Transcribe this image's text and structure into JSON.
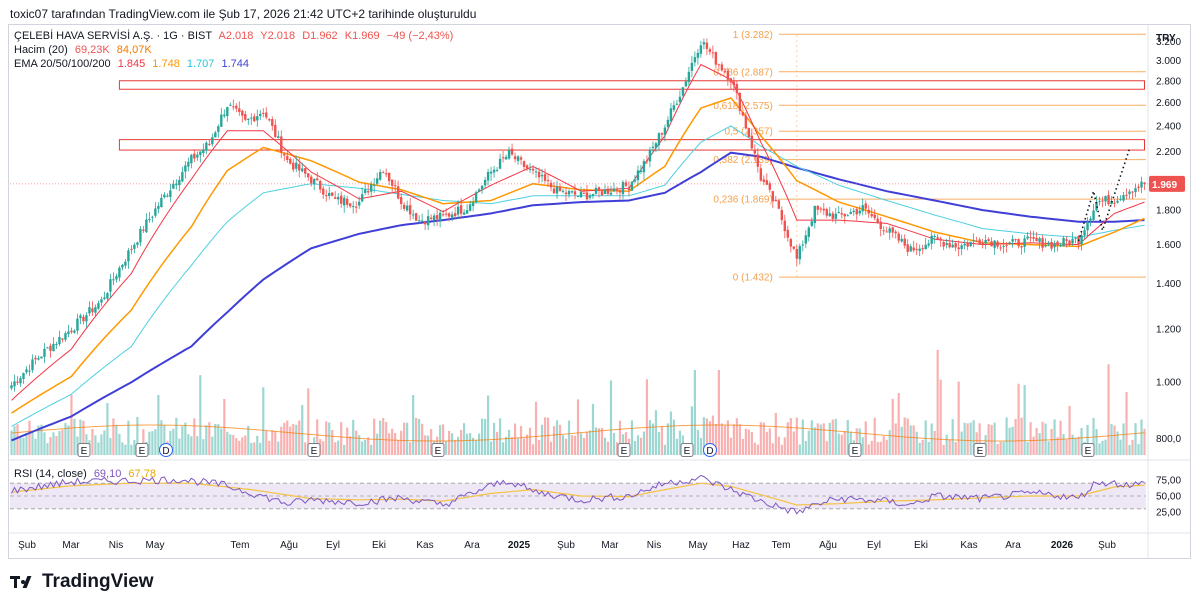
{
  "caption": "toxic07 tarafından TradingView.com ile Şub 17, 2026 21:42 UTC+2 tarihinde oluşturuldu",
  "legend": {
    "symbol": "ÇELEBİ HAVA SERVİSİ A.Ş. · 1G · BIST",
    "open": "A2.018",
    "high": "Y2.018",
    "low": "D1.962",
    "close": "K1.969",
    "change": "−49 (−2,43%)",
    "volume_label": "Hacim (20)",
    "volume_value": "69,23K",
    "volume_ma": "84,07K",
    "ema_label": "EMA 20/50/100/200",
    "ema20": "1.845",
    "ema50": "1.748",
    "ema100": "1.707",
    "ema200": "1.744",
    "rsi_label": "RSI (14, close)",
    "rsi_value": "69,10",
    "rsi_ma": "67,78"
  },
  "currency": "TRY",
  "last_price_label": "1.969",
  "brand": "TradingView",
  "colors": {
    "up": "#26a69a",
    "down": "#ef5350",
    "ema20": "#f23645",
    "ema50": "#ff9800",
    "ema100": "#4dd0e1",
    "ema200": "#3f3fd8",
    "fib": "#f5a04a",
    "box": "#e53935",
    "rsi_line": "#7e57c2",
    "rsi_ma": "#f5c242",
    "rsi_band": "#ede7f6",
    "price_tag": "#ef5350"
  },
  "chart_data": {
    "type": "candlestick",
    "y_scale": "log",
    "ylim": [
      0.78,
      3.33
    ],
    "price_ticks": [
      3.2,
      3.0,
      2.8,
      2.6,
      2.4,
      2.2,
      2.0,
      1.8,
      1.6,
      1.4,
      1.2,
      1.0
    ],
    "price_tick_labels": [
      "3.200",
      "3.000",
      "2.800",
      "2.600",
      "2.400",
      "2.200",
      "2.000",
      "1.800",
      "1.600",
      "1.400",
      "1.200",
      "1.000"
    ],
    "volume_tick_label": "800,0",
    "rsi_ticks": [
      75,
      50,
      25
    ],
    "rsi_tick_labels": [
      "75,00",
      "50,00",
      "25,00"
    ],
    "x_labels": [
      "Şub",
      "Mar",
      "Nis",
      "May",
      "Tem",
      "Ağu",
      "Eyl",
      "Eki",
      "Kas",
      "Ara",
      "2025",
      "Şub",
      "Mar",
      "Nis",
      "May",
      "Haz",
      "Tem",
      "Ağu",
      "Eyl",
      "Eki",
      "Kas",
      "Ara",
      "2026",
      "Şub"
    ],
    "close_path": [
      [
        0,
        0.99
      ],
      [
        10,
        1.1
      ],
      [
        20,
        1.2
      ],
      [
        30,
        1.32
      ],
      [
        40,
        1.58
      ],
      [
        50,
        1.86
      ],
      [
        60,
        2.14
      ],
      [
        66,
        2.26
      ],
      [
        72,
        2.58
      ],
      [
        78,
        2.43
      ],
      [
        84,
        2.53
      ],
      [
        92,
        2.13
      ],
      [
        100,
        2.0
      ],
      [
        108,
        1.86
      ],
      [
        116,
        1.85
      ],
      [
        124,
        2.08
      ],
      [
        130,
        1.86
      ],
      [
        136,
        1.74
      ],
      [
        144,
        1.76
      ],
      [
        152,
        1.82
      ],
      [
        160,
        2.05
      ],
      [
        166,
        2.18
      ],
      [
        174,
        2.04
      ],
      [
        182,
        1.92
      ],
      [
        190,
        1.89
      ],
      [
        198,
        1.92
      ],
      [
        206,
        1.96
      ],
      [
        212,
        2.14
      ],
      [
        218,
        2.4
      ],
      [
        224,
        2.74
      ],
      [
        230,
        3.21
      ],
      [
        235,
        3.0
      ],
      [
        240,
        2.82
      ],
      [
        245,
        2.4
      ],
      [
        250,
        2.01
      ],
      [
        256,
        1.79
      ],
      [
        262,
        1.52
      ],
      [
        268,
        1.8
      ],
      [
        276,
        1.76
      ],
      [
        284,
        1.81
      ],
      [
        292,
        1.68
      ],
      [
        300,
        1.57
      ],
      [
        308,
        1.63
      ],
      [
        316,
        1.59
      ],
      [
        324,
        1.63
      ],
      [
        332,
        1.6
      ],
      [
        340,
        1.62
      ],
      [
        348,
        1.6
      ],
      [
        356,
        1.63
      ],
      [
        362,
        1.85
      ],
      [
        368,
        1.87
      ],
      [
        373,
        1.93
      ],
      [
        378,
        1.97
      ]
    ],
    "ema20_path": [
      [
        0,
        0.94
      ],
      [
        20,
        1.12
      ],
      [
        40,
        1.45
      ],
      [
        60,
        2.0
      ],
      [
        72,
        2.36
      ],
      [
        84,
        2.36
      ],
      [
        100,
        2.05
      ],
      [
        116,
        1.87
      ],
      [
        130,
        1.92
      ],
      [
        144,
        1.79
      ],
      [
        160,
        1.96
      ],
      [
        174,
        2.09
      ],
      [
        190,
        1.92
      ],
      [
        206,
        1.94
      ],
      [
        218,
        2.32
      ],
      [
        230,
        2.96
      ],
      [
        240,
        2.81
      ],
      [
        250,
        2.27
      ],
      [
        262,
        1.74
      ],
      [
        276,
        1.74
      ],
      [
        292,
        1.72
      ],
      [
        308,
        1.63
      ],
      [
        324,
        1.6
      ],
      [
        340,
        1.61
      ],
      [
        356,
        1.6
      ],
      [
        368,
        1.78
      ],
      [
        378,
        1.85
      ]
    ],
    "ema50_path": [
      [
        0,
        0.9
      ],
      [
        20,
        1.02
      ],
      [
        40,
        1.28
      ],
      [
        60,
        1.7
      ],
      [
        72,
        2.06
      ],
      [
        84,
        2.23
      ],
      [
        100,
        2.13
      ],
      [
        116,
        1.98
      ],
      [
        130,
        1.93
      ],
      [
        144,
        1.84
      ],
      [
        160,
        1.86
      ],
      [
        174,
        1.97
      ],
      [
        190,
        1.93
      ],
      [
        206,
        1.92
      ],
      [
        218,
        2.09
      ],
      [
        230,
        2.55
      ],
      [
        240,
        2.64
      ],
      [
        250,
        2.32
      ],
      [
        262,
        1.99
      ],
      [
        276,
        1.85
      ],
      [
        292,
        1.76
      ],
      [
        308,
        1.67
      ],
      [
        324,
        1.61
      ],
      [
        340,
        1.6
      ],
      [
        356,
        1.59
      ],
      [
        368,
        1.67
      ],
      [
        378,
        1.75
      ]
    ],
    "ema100_path": [
      [
        0,
        0.86
      ],
      [
        20,
        0.96
      ],
      [
        40,
        1.13
      ],
      [
        60,
        1.49
      ],
      [
        72,
        1.73
      ],
      [
        84,
        1.91
      ],
      [
        100,
        1.97
      ],
      [
        116,
        1.94
      ],
      [
        130,
        1.9
      ],
      [
        144,
        1.86
      ],
      [
        160,
        1.84
      ],
      [
        174,
        1.89
      ],
      [
        190,
        1.89
      ],
      [
        206,
        1.89
      ],
      [
        218,
        1.96
      ],
      [
        230,
        2.27
      ],
      [
        240,
        2.4
      ],
      [
        250,
        2.24
      ],
      [
        262,
        2.09
      ],
      [
        276,
        1.96
      ],
      [
        292,
        1.86
      ],
      [
        308,
        1.77
      ],
      [
        324,
        1.69
      ],
      [
        340,
        1.66
      ],
      [
        356,
        1.64
      ],
      [
        368,
        1.68
      ],
      [
        378,
        1.71
      ]
    ],
    "ema200_path": [
      [
        0,
        0.82
      ],
      [
        20,
        0.89
      ],
      [
        40,
        1.0
      ],
      [
        60,
        1.13
      ],
      [
        72,
        1.27
      ],
      [
        84,
        1.42
      ],
      [
        100,
        1.58
      ],
      [
        116,
        1.66
      ],
      [
        130,
        1.71
      ],
      [
        144,
        1.74
      ],
      [
        160,
        1.78
      ],
      [
        174,
        1.83
      ],
      [
        190,
        1.85
      ],
      [
        206,
        1.86
      ],
      [
        218,
        1.91
      ],
      [
        230,
        2.05
      ],
      [
        240,
        2.19
      ],
      [
        250,
        2.16
      ],
      [
        262,
        2.08
      ],
      [
        276,
        2.0
      ],
      [
        292,
        1.92
      ],
      [
        308,
        1.86
      ],
      [
        324,
        1.8
      ],
      [
        340,
        1.76
      ],
      [
        356,
        1.73
      ],
      [
        368,
        1.73
      ],
      [
        378,
        1.74
      ]
    ],
    "fib_levels": [
      {
        "ratio": "1",
        "price": 3.282,
        "label": "1 (3.282)"
      },
      {
        "ratio": "0.786",
        "price": 2.887,
        "label": "0,786 (2.887)"
      },
      {
        "ratio": "0.618",
        "price": 2.575,
        "label": "0,618 (2.575)"
      },
      {
        "ratio": "0.5",
        "price": 2.357,
        "label": "0,5 (2.357)"
      },
      {
        "ratio": "0.382",
        "price": 2.139,
        "label": "0,382 (2.139)"
      },
      {
        "ratio": "0.236",
        "price": 1.869,
        "label": "0,236 (1.869)"
      },
      {
        "ratio": "0",
        "price": 1.432,
        "label": "0 (1.432)"
      }
    ],
    "zones": [
      {
        "from_price": 2.72,
        "to_price": 2.8
      },
      {
        "from_price": 2.21,
        "to_price": 2.29
      }
    ],
    "earnings_markers": [
      "E",
      "E",
      "D",
      "E",
      "E",
      "E",
      "E",
      "D",
      "E",
      "E",
      "E"
    ],
    "rsi_path": [
      [
        0,
        58
      ],
      [
        20,
        72
      ],
      [
        40,
        74
      ],
      [
        56,
        76
      ],
      [
        70,
        68
      ],
      [
        80,
        55
      ],
      [
        92,
        38
      ],
      [
        100,
        44
      ],
      [
        116,
        40
      ],
      [
        130,
        47
      ],
      [
        144,
        36
      ],
      [
        160,
        66
      ],
      [
        166,
        74
      ],
      [
        174,
        57
      ],
      [
        190,
        44
      ],
      [
        206,
        50
      ],
      [
        218,
        70
      ],
      [
        230,
        78
      ],
      [
        240,
        60
      ],
      [
        250,
        42
      ],
      [
        262,
        24
      ],
      [
        268,
        36
      ],
      [
        276,
        46
      ],
      [
        292,
        42
      ],
      [
        300,
        36
      ],
      [
        308,
        50
      ],
      [
        324,
        46
      ],
      [
        340,
        54
      ],
      [
        348,
        52
      ],
      [
        356,
        46
      ],
      [
        362,
        72
      ],
      [
        368,
        70
      ],
      [
        373,
        68
      ],
      [
        378,
        69
      ]
    ],
    "rsi_ma_path": [
      [
        0,
        56
      ],
      [
        20,
        66
      ],
      [
        40,
        70
      ],
      [
        60,
        70
      ],
      [
        80,
        60
      ],
      [
        100,
        46
      ],
      [
        116,
        44
      ],
      [
        130,
        45
      ],
      [
        144,
        42
      ],
      [
        160,
        54
      ],
      [
        174,
        60
      ],
      [
        190,
        50
      ],
      [
        206,
        49
      ],
      [
        218,
        60
      ],
      [
        230,
        70
      ],
      [
        240,
        65
      ],
      [
        250,
        52
      ],
      [
        262,
        36
      ],
      [
        276,
        38
      ],
      [
        292,
        42
      ],
      [
        308,
        44
      ],
      [
        324,
        47
      ],
      [
        340,
        50
      ],
      [
        356,
        50
      ],
      [
        368,
        64
      ],
      [
        378,
        67
      ]
    ]
  }
}
